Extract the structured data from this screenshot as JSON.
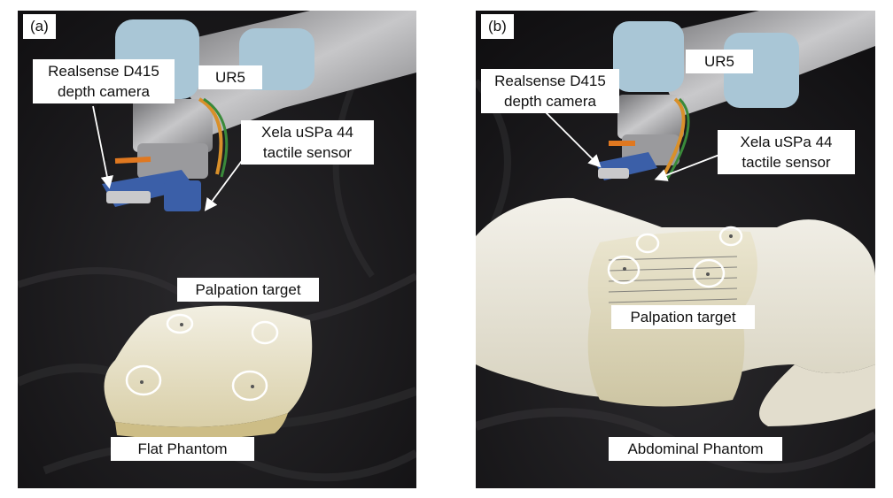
{
  "panels": [
    {
      "tag": "(a)",
      "labels": {
        "camera": [
          "Realsense D415",
          "depth camera"
        ],
        "robot": "UR5",
        "sensor": [
          "Xela uSPa 44",
          "tactile sensor"
        ],
        "target": "Palpation target",
        "phantom": "Flat Phantom"
      }
    },
    {
      "tag": "(b)",
      "labels": {
        "camera": [
          "Realsense D415",
          "depth camera"
        ],
        "robot": "UR5",
        "sensor": [
          "Xela uSPa 44",
          "tactile sensor"
        ],
        "target": "Palpation target",
        "phantom": "Abdominal Phantom"
      }
    }
  ],
  "colors": {
    "background": "#1c1b1d",
    "robot_blue": "#a9c6d6",
    "robot_metal": "#8e8e90",
    "sensor_blue": "#3b5fa8",
    "phantom": "#ece8d6",
    "marker": "#ffffff"
  }
}
